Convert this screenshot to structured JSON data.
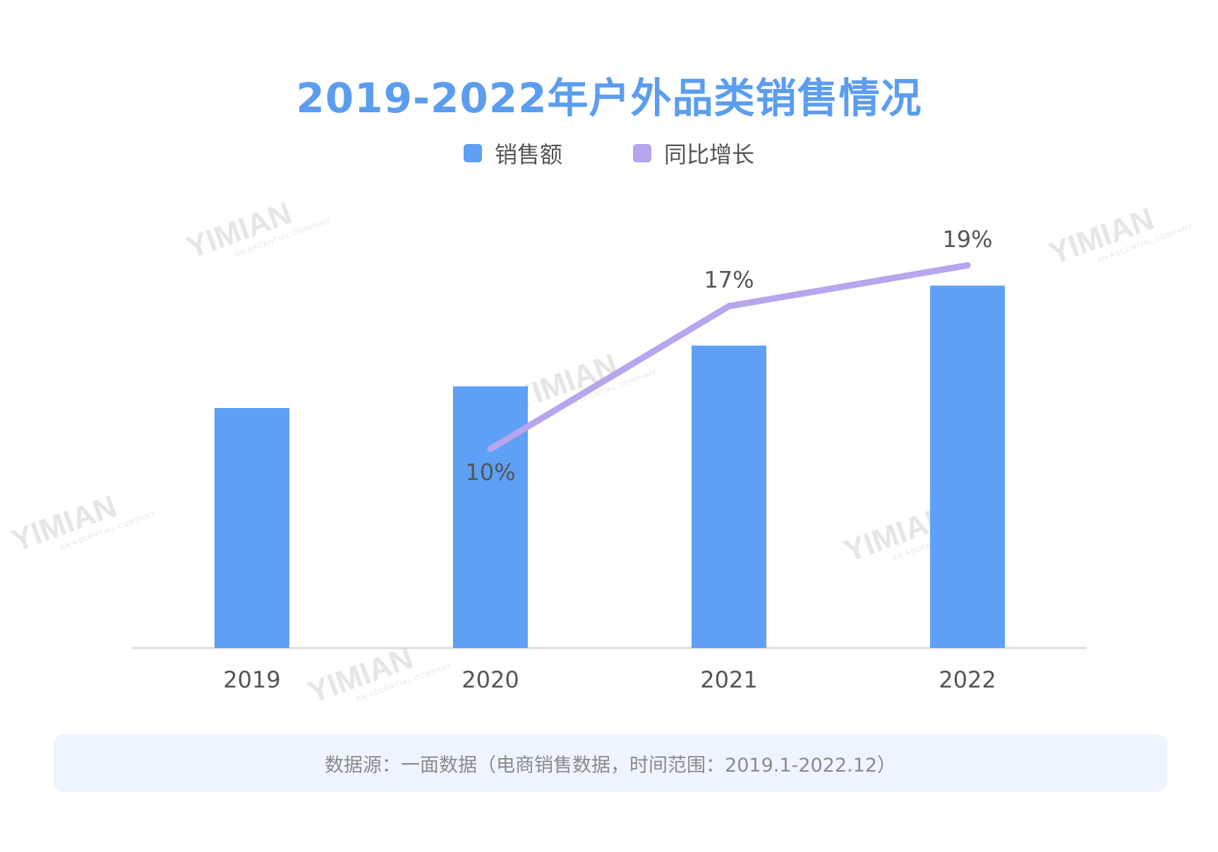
{
  "title": "2019-2022年户外品类销售情况",
  "legend": [
    {
      "label": "销售额",
      "color": "#5da0f5"
    },
    {
      "label": "同比增长",
      "color": "#b7a5ee"
    }
  ],
  "watermark": "YIMIAN",
  "watermark_sub": "AN ASCENTIAL COMPANY",
  "footer": "数据源：一面数据（电商销售数据，时间范围：2019.1-2022.12）",
  "chart_data": {
    "type": "bar",
    "title": "2019-2022年户外品类销售情况",
    "categories": [
      "2019",
      "2020",
      "2021",
      "2022"
    ],
    "series": [
      {
        "name": "销售额",
        "type": "bar",
        "values": [
          100,
          109,
          126,
          151
        ]
      },
      {
        "name": "同比增长",
        "type": "line",
        "values": [
          null,
          10,
          17,
          19
        ],
        "labels": [
          "",
          "10%",
          "17%",
          "19%"
        ]
      }
    ],
    "xlabel": "",
    "ylabel": "",
    "ylim": [
      0,
      160
    ],
    "grid": false,
    "legend_position": "top"
  }
}
